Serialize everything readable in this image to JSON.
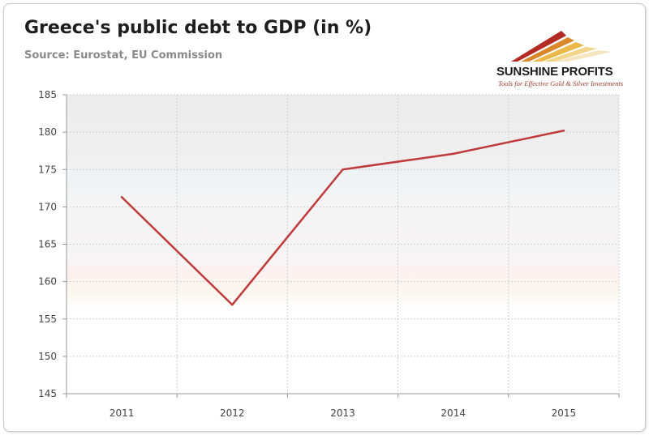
{
  "header": {
    "title": "Greece's public debt to GDP (in %)",
    "subtitle": "Source: Eurostat, EU Commission"
  },
  "logo": {
    "name": "SUNSHINE PROFITS",
    "tagline": "Tools for Effective Gold & Silver Investments"
  },
  "colors": {
    "line": "#bf3b3b",
    "gridline": "#cfcfcf",
    "axis": "#9a9a9a"
  },
  "chart_data": {
    "type": "line",
    "title": "Greece's public debt to GDP (in %)",
    "subtitle": "Source: Eurostat, EU Commission",
    "xlabel": "",
    "ylabel": "",
    "categories": [
      "2011",
      "2012",
      "2013",
      "2014",
      "2015"
    ],
    "series": [
      {
        "values": [
          171.3,
          156.9,
          175.0,
          177.1,
          180.2
        ]
      }
    ],
    "ylim": [
      145,
      185
    ],
    "yticks": [
      145,
      150,
      155,
      160,
      165,
      170,
      175,
      180,
      185
    ],
    "grid": true,
    "legend": "none"
  }
}
